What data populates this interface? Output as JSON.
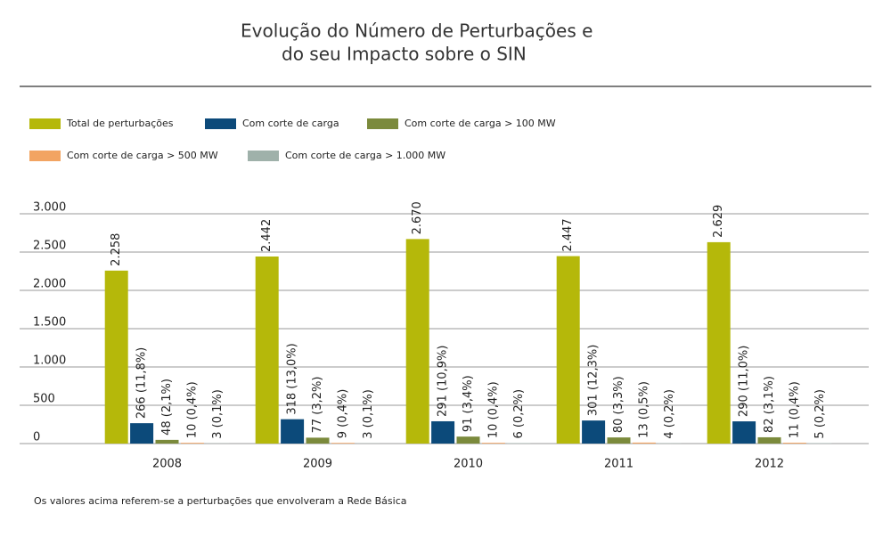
{
  "chart_data": {
    "type": "bar",
    "title": [
      "Evolução do Número de Perturbações e",
      "do seu Impacto sobre o SIN"
    ],
    "note": "Os valores acima referem-se a perturbações que envolveram a Rede Básica",
    "categories": [
      "2008",
      "2009",
      "2010",
      "2011",
      "2012"
    ],
    "series": [
      {
        "name": "Total de perturbações",
        "color": "#b5b80a",
        "values": [
          2258,
          2442,
          2670,
          2447,
          2629
        ],
        "value_labels": [
          "2.258",
          "2.442",
          "2.670",
          "2.447",
          "2.629"
        ]
      },
      {
        "name": "Com corte de carga",
        "color": "#0c4a7a",
        "values": [
          266,
          318,
          291,
          301,
          290
        ],
        "value_labels": [
          "266 (11,8%)",
          "318 (13,0%)",
          "291 (10,9%)",
          "301 (12,3%)",
          "290 (11,0%)"
        ]
      },
      {
        "name": "Com corte de carga > 100 MW",
        "color": "#7b8a3c",
        "values": [
          48,
          77,
          91,
          80,
          82
        ],
        "value_labels": [
          "48 (2,1%)",
          "77 (3,2%)",
          "91 (3,4%)",
          "80 (3,3%)",
          "82 (3,1%)"
        ]
      },
      {
        "name": "Com corte de carga > 500 MW",
        "color": "#f2a462",
        "values": [
          10,
          9,
          10,
          13,
          11
        ],
        "value_labels": [
          "10 (0,4%)",
          "9 (0,4%)",
          "10 (0,4%)",
          "13 (0,5%)",
          "11 (0,4%)"
        ]
      },
      {
        "name": "Com corte de carga > 1.000 MW",
        "color": "#9fb1aa",
        "values": [
          3,
          3,
          6,
          4,
          5
        ],
        "value_labels": [
          "3 (0,1%)",
          "3 (0,1%)",
          "6 (0,2%)",
          "4 (0,2%)",
          "5 (0,2%)"
        ]
      }
    ],
    "ylim": [
      0,
      3000
    ],
    "yticks": [
      0,
      500,
      {
        "value": 1000,
        "label": "1.000"
      },
      {
        "value": 1500,
        "label": "1.500"
      },
      {
        "value": 2000,
        "label": "2.000"
      },
      {
        "value": 2500,
        "label": "2.500"
      },
      {
        "value": 3000,
        "label": "3.000"
      }
    ],
    "grid": true
  }
}
